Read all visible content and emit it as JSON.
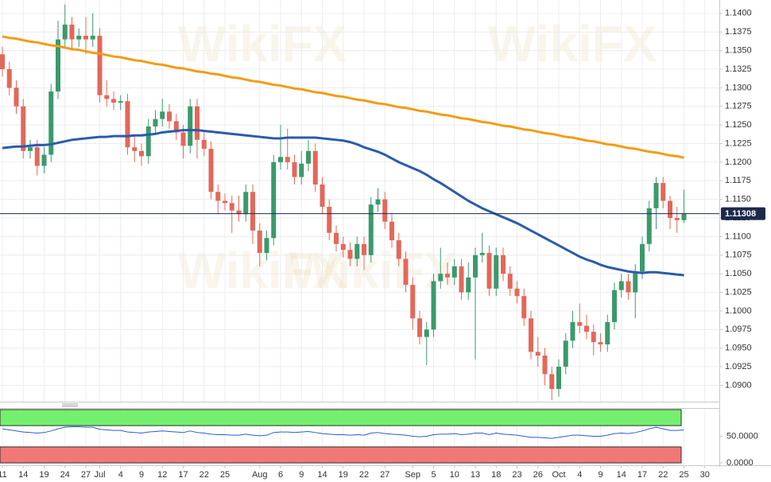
{
  "chart_data": {
    "type": "candlestick",
    "watermark": "WikiFX",
    "categories": [
      "11",
      null,
      null,
      "14",
      null,
      null,
      "19",
      null,
      null,
      "24",
      null,
      null,
      "27",
      null,
      "Jul",
      null,
      null,
      "4",
      null,
      null,
      "9",
      null,
      null,
      "12",
      null,
      null,
      "17",
      null,
      null,
      "22",
      null,
      null,
      "25",
      null,
      null,
      null,
      null,
      "Aug",
      null,
      null,
      "6",
      null,
      null,
      "9",
      null,
      null,
      "14",
      null,
      null,
      "19",
      null,
      null,
      "22",
      null,
      null,
      "27",
      null,
      null,
      null,
      "Sep",
      null,
      null,
      "5",
      null,
      null,
      "10",
      null,
      null,
      "13",
      null,
      null,
      "18",
      null,
      null,
      "23",
      null,
      null,
      "26",
      null,
      null,
      "Oct",
      null,
      null,
      "4",
      null,
      null,
      "9",
      null,
      null,
      "14",
      null,
      null,
      "17",
      null,
      null,
      "22",
      null,
      null,
      "25",
      null,
      null,
      "30"
    ],
    "up_color": "#3a9a6c",
    "down_color": "#e2685a",
    "open": [
      1.1345,
      1.1325,
      1.13,
      1.1275,
      1.1215,
      1.122,
      1.1195,
      1.121,
      1.1295,
      1.1365,
      1.1385,
      1.1365,
      1.137,
      1.1365,
      1.137,
      1.129,
      1.1285,
      1.128,
      1.1282,
      1.122,
      1.1215,
      1.1208,
      1.1248,
      1.1258,
      1.1268,
      1.1255,
      1.124,
      1.1222,
      1.1275,
      1.123,
      1.1218,
      1.116,
      1.1148,
      1.1145,
      1.1135,
      1.113,
      1.116,
      1.1108,
      1.1078,
      1.1098,
      1.12,
      1.1207,
      1.12,
      1.118,
      1.1198,
      1.1215,
      1.117,
      1.114,
      1.1105,
      1.109,
      1.1082,
      1.107,
      1.109,
      1.1075,
      1.1143,
      1.115,
      1.112,
      1.1095,
      1.107,
      1.1035,
      1.099,
      1.0965,
      1.0975,
      1.104,
      1.105,
      1.1045,
      1.106,
      1.1025,
      1.1045,
      1.1075,
      1.1078,
      1.103,
      1.1075,
      1.105,
      1.103,
      1.102,
      1.099,
      1.0945,
      1.094,
      1.0915,
      1.0895,
      1.0925,
      1.096,
      1.0985,
      1.098,
      1.0972,
      1.0958,
      1.0955,
      1.0985,
      1.1028,
      1.104,
      1.1025,
      1.1053,
      1.109,
      1.1138,
      1.1172,
      1.1148,
      1.1125,
      1.1122,
      null,
      null,
      null
    ],
    "high": [
      1.1355,
      1.1335,
      1.131,
      1.1285,
      1.123,
      1.123,
      1.122,
      1.1305,
      1.139,
      1.1412,
      1.1395,
      1.138,
      1.1395,
      1.14,
      1.138,
      1.131,
      1.1295,
      1.129,
      1.1292,
      1.1235,
      1.1225,
      1.1258,
      1.127,
      1.1285,
      1.1278,
      1.1265,
      1.125,
      1.1285,
      1.1285,
      1.124,
      1.1228,
      1.117,
      1.1158,
      1.1155,
      1.1155,
      1.117,
      1.117,
      1.1118,
      1.1108,
      1.121,
      1.125,
      1.1245,
      1.121,
      1.1215,
      1.123,
      1.1225,
      1.118,
      1.115,
      1.1115,
      1.11,
      1.1092,
      1.11,
      1.11,
      1.1153,
      1.1165,
      1.116,
      1.113,
      1.1105,
      1.108,
      1.1045,
      1.1,
      1.0985,
      1.105,
      1.1085,
      1.1065,
      1.107,
      1.107,
      1.1065,
      1.1085,
      1.1105,
      1.1088,
      1.1085,
      1.1085,
      1.106,
      1.104,
      1.103,
      1.1,
      1.0965,
      1.095,
      1.0925,
      1.0935,
      1.097,
      1.1,
      1.101,
      1.0995,
      1.0982,
      1.097,
      1.0995,
      1.1038,
      1.105,
      1.105,
      1.1063,
      1.11,
      1.1148,
      1.118,
      1.118,
      1.1155,
      1.114,
      1.1163,
      null,
      null,
      null
    ],
    "low": [
      1.1315,
      1.129,
      1.1265,
      1.1205,
      1.1205,
      1.1182,
      1.1185,
      1.12,
      1.1285,
      1.1355,
      1.135,
      1.1355,
      1.1345,
      1.1355,
      1.128,
      1.1275,
      1.127,
      1.127,
      1.121,
      1.12,
      1.1195,
      1.1198,
      1.1238,
      1.1248,
      1.1245,
      1.123,
      1.1205,
      1.1212,
      1.1205,
      1.1208,
      1.115,
      1.113,
      1.1135,
      1.1105,
      1.112,
      1.112,
      1.109,
      1.106,
      1.1068,
      1.1088,
      1.119,
      1.119,
      1.117,
      1.117,
      1.1188,
      1.116,
      1.113,
      1.1095,
      1.108,
      1.1072,
      1.106,
      1.106,
      1.1055,
      1.1065,
      1.1133,
      1.111,
      1.1085,
      1.106,
      1.1025,
      1.0975,
      1.0955,
      1.0927,
      1.0965,
      1.103,
      1.1035,
      1.1035,
      1.1015,
      1.1015,
      1.0935,
      1.1065,
      1.102,
      1.102,
      1.104,
      1.102,
      1.101,
      1.098,
      1.0935,
      1.0925,
      1.09,
      1.088,
      1.0885,
      1.0915,
      1.095,
      1.097,
      1.0962,
      1.094,
      1.0945,
      1.0945,
      1.0975,
      1.1018,
      1.1015,
      1.099,
      1.1043,
      1.108,
      1.111,
      1.1138,
      1.111,
      1.1105,
      1.1118,
      null,
      null,
      null
    ],
    "close": [
      1.1325,
      1.13,
      1.1275,
      1.1215,
      1.122,
      1.1195,
      1.121,
      1.1295,
      1.1365,
      1.1385,
      1.1365,
      1.137,
      1.1365,
      1.137,
      1.129,
      1.1285,
      1.128,
      1.1282,
      1.122,
      1.1215,
      1.1208,
      1.1248,
      1.1258,
      1.1268,
      1.1255,
      1.124,
      1.1222,
      1.1275,
      1.123,
      1.1218,
      1.116,
      1.1148,
      1.1145,
      1.1135,
      1.113,
      1.116,
      1.1108,
      1.1078,
      1.1098,
      1.12,
      1.1207,
      1.12,
      1.118,
      1.1198,
      1.1215,
      1.117,
      1.114,
      1.1105,
      1.109,
      1.1082,
      1.107,
      1.109,
      1.1075,
      1.1143,
      1.115,
      1.112,
      1.1095,
      1.107,
      1.1035,
      1.099,
      1.0965,
      1.0975,
      1.104,
      1.105,
      1.1045,
      1.106,
      1.1025,
      1.1045,
      1.1075,
      1.1078,
      1.103,
      1.1075,
      1.105,
      1.103,
      1.102,
      1.099,
      1.0945,
      1.094,
      1.0915,
      1.0895,
      1.0925,
      1.096,
      1.0985,
      1.098,
      1.0972,
      1.0958,
      1.0955,
      1.0985,
      1.1028,
      1.104,
      1.1025,
      1.1053,
      1.109,
      1.1138,
      1.1172,
      1.1148,
      1.1125,
      1.1122,
      1.1131,
      null,
      null,
      null
    ],
    "overlays": [
      {
        "color": "#f39c12",
        "values": [
          1.1369,
          1.1367,
          1.1366,
          1.1364,
          1.1362,
          1.1361,
          1.1359,
          1.1357,
          1.1356,
          1.1354,
          1.1352,
          1.1351,
          1.1349,
          1.1347,
          1.1346,
          1.1344,
          1.1342,
          1.1341,
          1.1339,
          1.1337,
          1.1336,
          1.1334,
          1.1332,
          1.1331,
          1.1329,
          1.1327,
          1.1326,
          1.1324,
          1.1322,
          1.1321,
          1.1319,
          1.1318,
          1.1316,
          1.1314,
          1.1313,
          1.1311,
          1.1309,
          1.1308,
          1.1306,
          1.1304,
          1.1303,
          1.1301,
          1.1299,
          1.1298,
          1.1296,
          1.1294,
          1.1293,
          1.1291,
          1.1289,
          1.1288,
          1.1286,
          1.1284,
          1.1283,
          1.1281,
          1.1279,
          1.1278,
          1.1276,
          1.1274,
          1.1273,
          1.1271,
          1.1269,
          1.1268,
          1.1266,
          1.1264,
          1.1263,
          1.1261,
          1.1259,
          1.1258,
          1.1256,
          1.1254,
          1.1253,
          1.1251,
          1.1249,
          1.1248,
          1.1246,
          1.1244,
          1.1243,
          1.1241,
          1.1239,
          1.1238,
          1.1236,
          1.1234,
          1.1233,
          1.1231,
          1.1229,
          1.1228,
          1.1226,
          1.1224,
          1.1223,
          1.1221,
          1.1219,
          1.1218,
          1.1216,
          1.1214,
          1.1213,
          1.1211,
          1.1209,
          1.1208,
          1.1206,
          null,
          null,
          null
        ]
      },
      {
        "color": "#2a5caa",
        "values": [
          1.1219,
          1.122,
          1.1221,
          1.1221,
          1.1222,
          1.1223,
          1.1223,
          1.1224,
          1.1226,
          1.1228,
          1.123,
          1.1231,
          1.1232,
          1.1233,
          1.1234,
          1.1234,
          1.1235,
          1.1235,
          1.1235,
          1.1236,
          1.1236,
          1.1237,
          1.1238,
          1.124,
          1.1241,
          1.1242,
          1.1243,
          1.1243,
          1.1243,
          1.1242,
          1.1241,
          1.124,
          1.1239,
          1.1238,
          1.1237,
          1.1236,
          1.1235,
          1.1234,
          1.1233,
          1.1232,
          1.1232,
          1.1233,
          1.1233,
          1.1233,
          1.1233,
          1.1233,
          1.1232,
          1.1231,
          1.123,
          1.1229,
          1.1227,
          1.1224,
          1.122,
          1.1217,
          1.1214,
          1.121,
          1.1205,
          1.12,
          1.1196,
          1.1192,
          1.1188,
          1.1183,
          1.1177,
          1.1172,
          1.1166,
          1.116,
          1.1154,
          1.1148,
          1.1143,
          1.1138,
          1.1134,
          1.113,
          1.1126,
          1.1122,
          1.1118,
          1.1113,
          1.1108,
          1.1103,
          1.1098,
          1.1093,
          1.1088,
          1.1083,
          1.1078,
          1.1073,
          1.1069,
          1.1066,
          1.1062,
          1.1059,
          1.1057,
          1.1055,
          1.1053,
          1.1052,
          1.1051,
          1.1052,
          1.1052,
          1.1051,
          1.105,
          1.1049,
          1.1048,
          null,
          null,
          null
        ]
      }
    ],
    "last_price": 1.11308,
    "last_price_color": "#1c2a4a",
    "ylim": [
      1.0878,
      1.1418
    ],
    "yticks": [
      {
        "value": 1.09,
        "label": "1.0900"
      },
      {
        "value": 1.0925,
        "label": "1.0925"
      },
      {
        "value": 1.095,
        "label": "1.0950"
      },
      {
        "value": 1.0975,
        "label": "1.0975"
      },
      {
        "value": 1.1,
        "label": "1.1000"
      },
      {
        "value": 1.1025,
        "label": "1.1025"
      },
      {
        "value": 1.105,
        "label": "1.1050"
      },
      {
        "value": 1.1075,
        "label": "1.1075"
      },
      {
        "value": 1.11,
        "label": "1.1100"
      },
      {
        "value": 1.1125,
        "label": "1.1125"
      },
      {
        "value": 1.115,
        "label": "1.1150"
      },
      {
        "value": 1.1175,
        "label": "1.1175"
      },
      {
        "value": 1.12,
        "label": "1.1200"
      },
      {
        "value": 1.1225,
        "label": "1.1225"
      },
      {
        "value": 1.125,
        "label": "1.1250"
      },
      {
        "value": 1.1275,
        "label": "1.1275"
      },
      {
        "value": 1.13,
        "label": "1.1300"
      },
      {
        "value": 1.1325,
        "label": "1.1325"
      },
      {
        "value": 1.135,
        "label": "1.1350"
      },
      {
        "value": 1.1375,
        "label": "1.1375"
      },
      {
        "value": 1.14,
        "label": "1.1400"
      }
    ],
    "grid": true,
    "indicator": {
      "color": "#2c5bd6",
      "values": [
        64,
        62,
        60,
        58,
        57,
        56,
        57,
        60,
        64,
        67,
        68,
        68,
        67,
        67,
        63,
        62,
        61,
        61,
        58,
        57,
        56,
        58,
        59,
        60,
        59,
        58,
        57,
        60,
        57,
        56,
        54,
        53,
        53,
        52,
        52,
        54,
        52,
        51,
        52,
        57,
        58,
        58,
        57,
        58,
        59,
        57,
        55,
        54,
        53,
        53,
        52,
        53,
        52,
        56,
        57,
        55,
        54,
        53,
        52,
        50,
        49,
        50,
        53,
        54,
        54,
        55,
        53,
        54,
        56,
        56,
        53,
        56,
        54,
        53,
        52,
        50,
        48,
        48,
        47,
        46,
        48,
        50,
        52,
        52,
        51,
        50,
        50,
        52,
        55,
        56,
        55,
        57,
        60,
        64,
        67,
        64,
        61,
        61,
        62,
        null,
        null,
        null
      ],
      "y2lim": [
        0,
        100
      ],
      "y2ticks": [
        {
          "value": 0,
          "label": "0.0000"
        },
        {
          "value": 50,
          "label": "50.0000"
        }
      ],
      "upper_zone": [
        70,
        100
      ],
      "upper_color": "#74f06f",
      "lower_zone": [
        0,
        30
      ],
      "lower_color": "#f27878"
    }
  }
}
